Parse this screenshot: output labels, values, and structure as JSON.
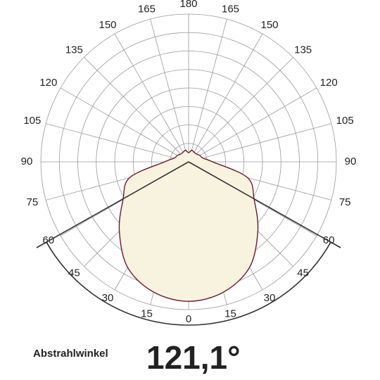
{
  "chart_data": {
    "type": "polar",
    "x": [
      0,
      15,
      30,
      45,
      60,
      75,
      90,
      105,
      120,
      135,
      150,
      165,
      180
    ],
    "series": [
      {
        "color": "#6b1a2e",
        "fill": "#f8f3df",
        "values": [
          7.55,
          7.3,
          6.6,
          5.3,
          4.1,
          3.3,
          1.3,
          0.8,
          0.7,
          0.6,
          0.6,
          0.65,
          0.5
        ]
      }
    ],
    "angle_ticks": [
      0,
      15,
      30,
      45,
      60,
      75,
      90,
      105,
      120,
      135,
      150,
      165,
      180
    ],
    "rlim": [
      0,
      8
    ],
    "rticks": [
      1,
      2,
      3,
      4,
      5,
      6,
      7,
      8
    ],
    "beam_angle_title": "Abstrahlwinkel",
    "beam_angle": {
      "value": 121.1,
      "label": "121,1°"
    }
  }
}
